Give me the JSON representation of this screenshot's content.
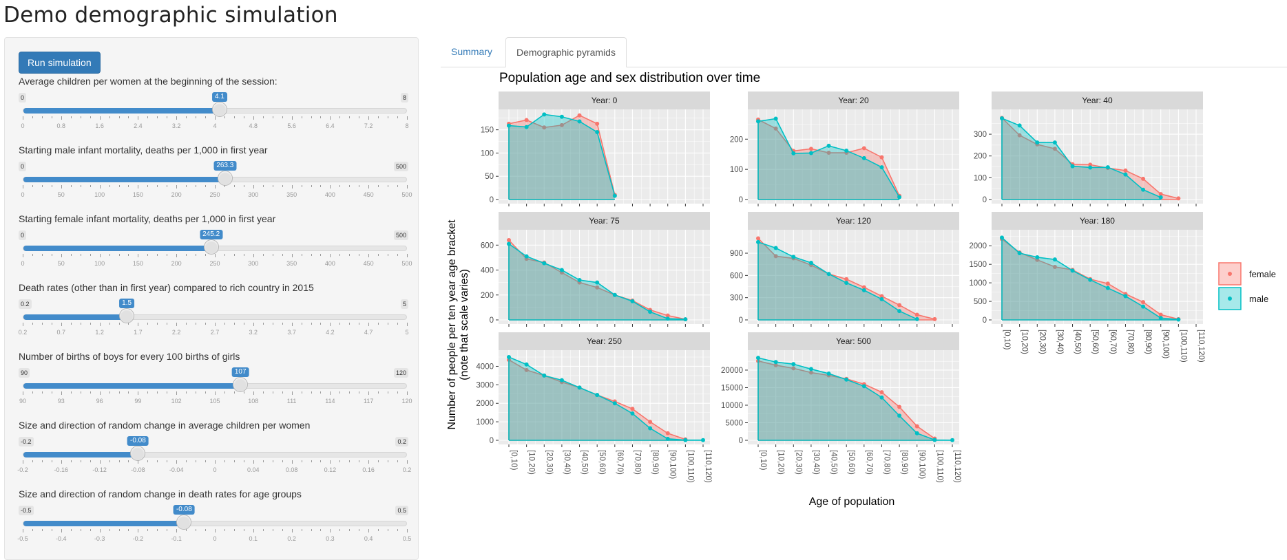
{
  "app": {
    "title": "Demo demographic simulation"
  },
  "sidebar": {
    "run_button": "Run simulation",
    "sliders": [
      {
        "label": "Average children per women at the beginning of the session:",
        "min": 0,
        "max": 8,
        "min_label": "0",
        "max_label": "8",
        "value": 4.1,
        "value_label": "4.1",
        "ticks": [
          "0",
          "0.8",
          "1.6",
          "2.4",
          "3.2",
          "4",
          "4.8",
          "5.6",
          "6.4",
          "7.2",
          "8"
        ]
      },
      {
        "label": "Starting male infant mortality, deaths per 1,000 in first year",
        "min": 0,
        "max": 500,
        "min_label": "0",
        "max_label": "500",
        "value": 263.3,
        "value_label": "263.3",
        "ticks": [
          "0",
          "50",
          "100",
          "150",
          "200",
          "250",
          "300",
          "350",
          "400",
          "450",
          "500"
        ]
      },
      {
        "label": "Starting female infant mortality, deaths per 1,000 in first year",
        "min": 0,
        "max": 500,
        "min_label": "0",
        "max_label": "500",
        "value": 245.2,
        "value_label": "245.2",
        "ticks": [
          "0",
          "50",
          "100",
          "150",
          "200",
          "250",
          "300",
          "350",
          "400",
          "450",
          "500"
        ]
      },
      {
        "label": "Death rates (other than in first year) compared to rich country in 2015",
        "min": 0.2,
        "max": 5,
        "min_label": "0.2",
        "max_label": "5",
        "value": 1.5,
        "value_label": "1.5",
        "ticks": [
          "0.2",
          "0.7",
          "1.2",
          "1.7",
          "2.2",
          "2.7",
          "3.2",
          "3.7",
          "4.2",
          "4.7",
          "5"
        ]
      },
      {
        "label": "Number of births of boys for every 100 births of girls",
        "min": 90,
        "max": 120,
        "min_label": "90",
        "max_label": "120",
        "value": 107,
        "value_label": "107",
        "ticks": [
          "90",
          "93",
          "96",
          "99",
          "102",
          "105",
          "108",
          "111",
          "114",
          "117",
          "120"
        ]
      },
      {
        "label": "Size and direction of random change in average children per women",
        "min": -0.2,
        "max": 0.2,
        "min_label": "-0.2",
        "max_label": "0.2",
        "value": -0.08,
        "value_label": "-0.08",
        "ticks": [
          "-0.2",
          "-0.16",
          "-0.12",
          "-0.08",
          "-0.04",
          "0",
          "0.04",
          "0.08",
          "0.12",
          "0.16",
          "0.2"
        ]
      },
      {
        "label": "Size and direction of random change in death rates for age groups",
        "min": -0.5,
        "max": 0.5,
        "min_label": "-0.5",
        "max_label": "0.5",
        "value": -0.08,
        "value_label": "-0.08",
        "ticks": [
          "-0.5",
          "-0.4",
          "-0.3",
          "-0.2",
          "-0.1",
          "0",
          "0.1",
          "0.2",
          "0.3",
          "0.4",
          "0.5"
        ]
      }
    ]
  },
  "tabs": [
    {
      "label": "Summary",
      "active": false
    },
    {
      "label": "Demographic pyramids",
      "active": true
    }
  ],
  "colors": {
    "female": "#F8766D",
    "male": "#00BFC4",
    "strip": "#D9D9D9",
    "panel": "#EBEBEB",
    "accent": "#428bca"
  },
  "chart_data": {
    "type": "area",
    "title": "Population age and sex distribution over time",
    "xlabel": "Age of population",
    "ylabel": "Number of people per ten year age bracket",
    "ylabel2": "(note that scale varies)",
    "categories": [
      "[0,10)",
      "[10,20)",
      "[20,30)",
      "[30,40)",
      "[40,50)",
      "[50,60)",
      "[60,70)",
      "[70,80)",
      "[80,90)",
      "[90,100)",
      "[100,110)",
      "[110,120)"
    ],
    "legend": [
      {
        "name": "female",
        "color": "#F8766D"
      },
      {
        "name": "male",
        "color": "#00BFC4"
      }
    ],
    "legend_position": "right",
    "grid": true,
    "facets": [
      {
        "title": "Year: 0",
        "ylim": [
          0,
          185
        ],
        "yticks": [
          0,
          50,
          100,
          150
        ],
        "female": [
          163,
          171,
          155,
          160,
          181,
          163,
          10
        ],
        "male": [
          159,
          156,
          183,
          178,
          168,
          145,
          8
        ]
      },
      {
        "title": "Year: 20",
        "ylim": [
          0,
          285
        ],
        "yticks": [
          0,
          100,
          200
        ],
        "female": [
          265,
          235,
          161,
          168,
          155,
          155,
          170,
          140,
          12
        ],
        "male": [
          259,
          268,
          153,
          154,
          178,
          162,
          137,
          107,
          8
        ]
      },
      {
        "title": "Year: 40",
        "ylim": [
          0,
          395
        ],
        "yticks": [
          0,
          100,
          200,
          300
        ],
        "female": [
          375,
          295,
          253,
          233,
          162,
          160,
          145,
          133,
          95,
          25,
          5
        ],
        "male": [
          373,
          340,
          262,
          262,
          153,
          147,
          148,
          115,
          45,
          10
        ]
      },
      {
        "title": "Year: 75",
        "ylim": [
          0,
          690
        ],
        "yticks": [
          0,
          200,
          400,
          600
        ],
        "female": [
          640,
          490,
          460,
          380,
          300,
          260,
          200,
          155,
          80,
          35,
          5
        ],
        "male": [
          610,
          510,
          455,
          400,
          320,
          300,
          200,
          150,
          65,
          10,
          5
        ]
      },
      {
        "title": "Year: 120",
        "ylim": [
          0,
          1160
        ],
        "yticks": [
          0,
          300,
          600,
          900
        ],
        "female": [
          1100,
          860,
          830,
          740,
          620,
          550,
          440,
          320,
          200,
          70,
          10
        ],
        "male": [
          1050,
          970,
          850,
          770,
          620,
          500,
          400,
          280,
          120,
          10
        ]
      },
      {
        "title": "Year: 180",
        "ylim": [
          0,
          2320
        ],
        "yticks": [
          0,
          500,
          1000,
          1500,
          2000
        ],
        "female": [
          2180,
          1820,
          1620,
          1430,
          1350,
          1100,
          980,
          700,
          480,
          140,
          20
        ],
        "male": [
          2220,
          1800,
          1690,
          1630,
          1330,
          1080,
          860,
          640,
          360,
          50,
          10
        ]
      },
      {
        "title": "Year: 250",
        "ylim": [
          0,
          4650
        ],
        "yticks": [
          0,
          1000,
          2000,
          3000,
          4000
        ],
        "female": [
          4350,
          3800,
          3500,
          3150,
          2850,
          2450,
          2100,
          1700,
          1000,
          380,
          50
        ],
        "male": [
          4500,
          4100,
          3500,
          3250,
          2850,
          2450,
          2000,
          1450,
          650,
          80,
          10,
          10
        ]
      },
      {
        "title": "Year: 500",
        "ylim": [
          0,
          24500
        ],
        "yticks": [
          0,
          5000,
          10000,
          15000,
          20000
        ],
        "female": [
          22600,
          21400,
          20500,
          19300,
          18500,
          17500,
          16000,
          13700,
          9500,
          4000,
          500
        ],
        "male": [
          23500,
          22300,
          21700,
          20300,
          19000,
          17300,
          15400,
          12200,
          7000,
          2000,
          100,
          50
        ]
      }
    ]
  }
}
